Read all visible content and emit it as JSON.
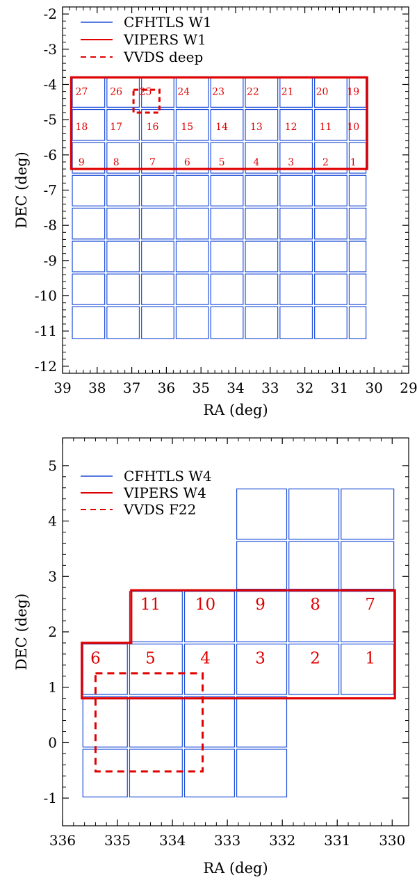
{
  "colors": {
    "cfhtls": "#1f4fd8",
    "vipers": "#e00000",
    "vvds": "#e00000",
    "axis": "#000000"
  },
  "chart_data": [
    {
      "type": "scatter",
      "title": "",
      "xlabel": "RA (deg)",
      "ylabel": "DEC (deg)",
      "xlim": [
        39,
        29
      ],
      "ylim": [
        -12.2,
        -1.8
      ],
      "xticks": [
        39,
        38,
        37,
        36,
        35,
        34,
        33,
        32,
        31,
        30,
        29
      ],
      "yticks": [
        -2,
        -3,
        -4,
        -5,
        -6,
        -7,
        -8,
        -9,
        -10,
        -11,
        -12
      ],
      "grid": false,
      "legend_position": "top-left",
      "legend": [
        {
          "label": "CFHTLS W1",
          "style": "solid-blue"
        },
        {
          "label": "VIPERS W1",
          "style": "solid-red"
        },
        {
          "label": "VVDS deep",
          "style": "dashed-red"
        }
      ],
      "cfhtls": {
        "ra_edges": [
          38.75,
          37.75,
          36.75,
          35.75,
          34.75,
          33.75,
          32.75,
          31.75,
          30.75,
          30.2
        ],
        "dec_edges": [
          -3.75,
          -4.68,
          -5.62,
          -6.55,
          -7.48,
          -8.42,
          -9.35,
          -10.28,
          -11.25
        ]
      },
      "vipers": [
        {
          "ra_min": 30.2,
          "ra_max": 38.75,
          "dec_min": -6.4,
          "dec_max": -3.8
        }
      ],
      "vvds": [
        {
          "ra_min": 36.2,
          "ra_max": 36.95,
          "dec_min": -4.8,
          "dec_max": -4.15
        }
      ],
      "tiles": [
        {
          "id": "27",
          "ra": 38.45,
          "dec": -4.2
        },
        {
          "id": "26",
          "ra": 37.45,
          "dec": -4.2
        },
        {
          "id": "25",
          "ra": 36.6,
          "dec": -4.2
        },
        {
          "id": "24",
          "ra": 35.5,
          "dec": -4.2
        },
        {
          "id": "23",
          "ra": 34.5,
          "dec": -4.2
        },
        {
          "id": "22",
          "ra": 33.5,
          "dec": -4.2
        },
        {
          "id": "21",
          "ra": 32.5,
          "dec": -4.2
        },
        {
          "id": "20",
          "ra": 31.5,
          "dec": -4.2
        },
        {
          "id": "19",
          "ra": 30.6,
          "dec": -4.2
        },
        {
          "id": "18",
          "ra": 38.45,
          "dec": -5.2
        },
        {
          "id": "17",
          "ra": 37.45,
          "dec": -5.2
        },
        {
          "id": "16",
          "ra": 36.4,
          "dec": -5.2
        },
        {
          "id": "15",
          "ra": 35.4,
          "dec": -5.2
        },
        {
          "id": "14",
          "ra": 34.4,
          "dec": -5.2
        },
        {
          "id": "13",
          "ra": 33.4,
          "dec": -5.2
        },
        {
          "id": "12",
          "ra": 32.4,
          "dec": -5.2
        },
        {
          "id": "11",
          "ra": 31.4,
          "dec": -5.2
        },
        {
          "id": "10",
          "ra": 30.6,
          "dec": -5.2
        },
        {
          "id": "9",
          "ra": 38.45,
          "dec": -6.2
        },
        {
          "id": "8",
          "ra": 37.45,
          "dec": -6.2
        },
        {
          "id": "7",
          "ra": 36.4,
          "dec": -6.2
        },
        {
          "id": "6",
          "ra": 35.4,
          "dec": -6.2
        },
        {
          "id": "5",
          "ra": 34.4,
          "dec": -6.2
        },
        {
          "id": "4",
          "ra": 33.4,
          "dec": -6.2
        },
        {
          "id": "3",
          "ra": 32.4,
          "dec": -6.2
        },
        {
          "id": "2",
          "ra": 31.4,
          "dec": -6.2
        },
        {
          "id": "1",
          "ra": 30.6,
          "dec": -6.2
        }
      ]
    },
    {
      "type": "scatter",
      "title": "",
      "xlabel": "RA (deg)",
      "ylabel": "DEC (deg)",
      "xlim": [
        336,
        329.7
      ],
      "ylim": [
        -1.5,
        5.5
      ],
      "xticks": [
        336,
        335,
        334,
        333,
        332,
        331,
        330
      ],
      "yticks": [
        5,
        4,
        3,
        2,
        1,
        0,
        -1
      ],
      "grid": false,
      "legend_position": "top-left",
      "legend": [
        {
          "label": "CFHTLS W4",
          "style": "solid-blue"
        },
        {
          "label": "VIPERS W4",
          "style": "solid-red"
        },
        {
          "label": "VVDS F22",
          "style": "dashed-red"
        }
      ],
      "cfhtls_rows": [
        {
          "ra_edges": [
            332.85,
            331.9,
            330.95,
            329.95
          ],
          "dec_edges": [
            3.65,
            4.6
          ]
        },
        {
          "ra_edges": [
            332.85,
            331.9,
            330.95,
            329.95
          ],
          "dec_edges": [
            2.75,
            3.65
          ]
        },
        {
          "ra_edges": [
            334.8,
            333.8,
            332.85,
            331.9,
            330.95,
            329.95
          ],
          "dec_edges": [
            1.8,
            2.75
          ]
        },
        {
          "ra_edges": [
            335.65,
            334.8,
            333.8,
            332.85,
            331.9,
            330.95,
            329.95
          ],
          "dec_edges": [
            0.85,
            1.8
          ]
        },
        {
          "ra_edges": [
            335.65,
            334.8,
            333.8,
            332.85,
            331.9
          ],
          "dec_edges": [
            -0.1,
            0.85
          ]
        },
        {
          "ra_edges": [
            335.65,
            334.8,
            333.8,
            332.85,
            331.9
          ],
          "dec_edges": [
            -1.0,
            -0.1
          ]
        }
      ],
      "vipers": [
        {
          "ra_min": 329.95,
          "ra_max": 335.65,
          "dec_min": 0.8,
          "dec_max": 1.8
        },
        {
          "ra_min": 329.95,
          "ra_max": 334.75,
          "dec_min": 1.8,
          "dec_max": 2.75
        }
      ],
      "vipers_outline": [
        [
          335.65,
          0.8
        ],
        [
          329.95,
          0.8
        ],
        [
          329.95,
          2.75
        ],
        [
          334.75,
          2.75
        ],
        [
          334.75,
          1.8
        ],
        [
          335.65,
          1.8
        ]
      ],
      "vvds": [
        {
          "ra_min": 333.45,
          "ra_max": 335.4,
          "dec_min": -0.52,
          "dec_max": 1.25
        }
      ],
      "tiles": [
        {
          "id": "11",
          "ra": 334.4,
          "dec": 2.5
        },
        {
          "id": "10",
          "ra": 333.4,
          "dec": 2.5
        },
        {
          "id": "9",
          "ra": 332.4,
          "dec": 2.5
        },
        {
          "id": "8",
          "ra": 331.4,
          "dec": 2.5
        },
        {
          "id": "7",
          "ra": 330.4,
          "dec": 2.5
        },
        {
          "id": "6",
          "ra": 335.4,
          "dec": 1.53
        },
        {
          "id": "5",
          "ra": 334.4,
          "dec": 1.53
        },
        {
          "id": "4",
          "ra": 333.4,
          "dec": 1.53
        },
        {
          "id": "3",
          "ra": 332.4,
          "dec": 1.53
        },
        {
          "id": "2",
          "ra": 331.4,
          "dec": 1.53
        },
        {
          "id": "1",
          "ra": 330.4,
          "dec": 1.53
        }
      ]
    }
  ]
}
